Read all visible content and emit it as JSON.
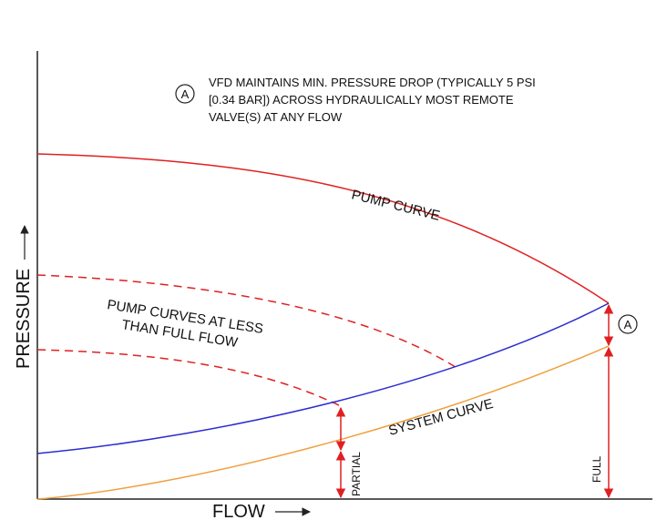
{
  "annotation": {
    "marker": "A",
    "lines": [
      "VFD MAINTAINS MIN. PRESSURE DROP (TYPICALLY 5 PSI",
      "[0.34 BAR]) ACROSS HYDRAULICALLY MOST REMOTE",
      "VALVE(S) AT ANY FLOW"
    ]
  },
  "labels": {
    "pump_curve": "PUMP CURVE",
    "reduced_curves_line1": "PUMP CURVES AT LESS",
    "reduced_curves_line2": "THAN FULL FLOW",
    "system_curve": "SYSTEM CURVE",
    "partial": "PARTIAL",
    "full": "FULL",
    "marker_right": "A"
  },
  "axes": {
    "y_title": "PRESSURE",
    "x_title": "FLOW"
  },
  "colors": {
    "pump": "#e02020",
    "blue": "#2b2bd0",
    "system": "#f0a040",
    "axis": "#222222",
    "arrow": "#e02020"
  }
}
